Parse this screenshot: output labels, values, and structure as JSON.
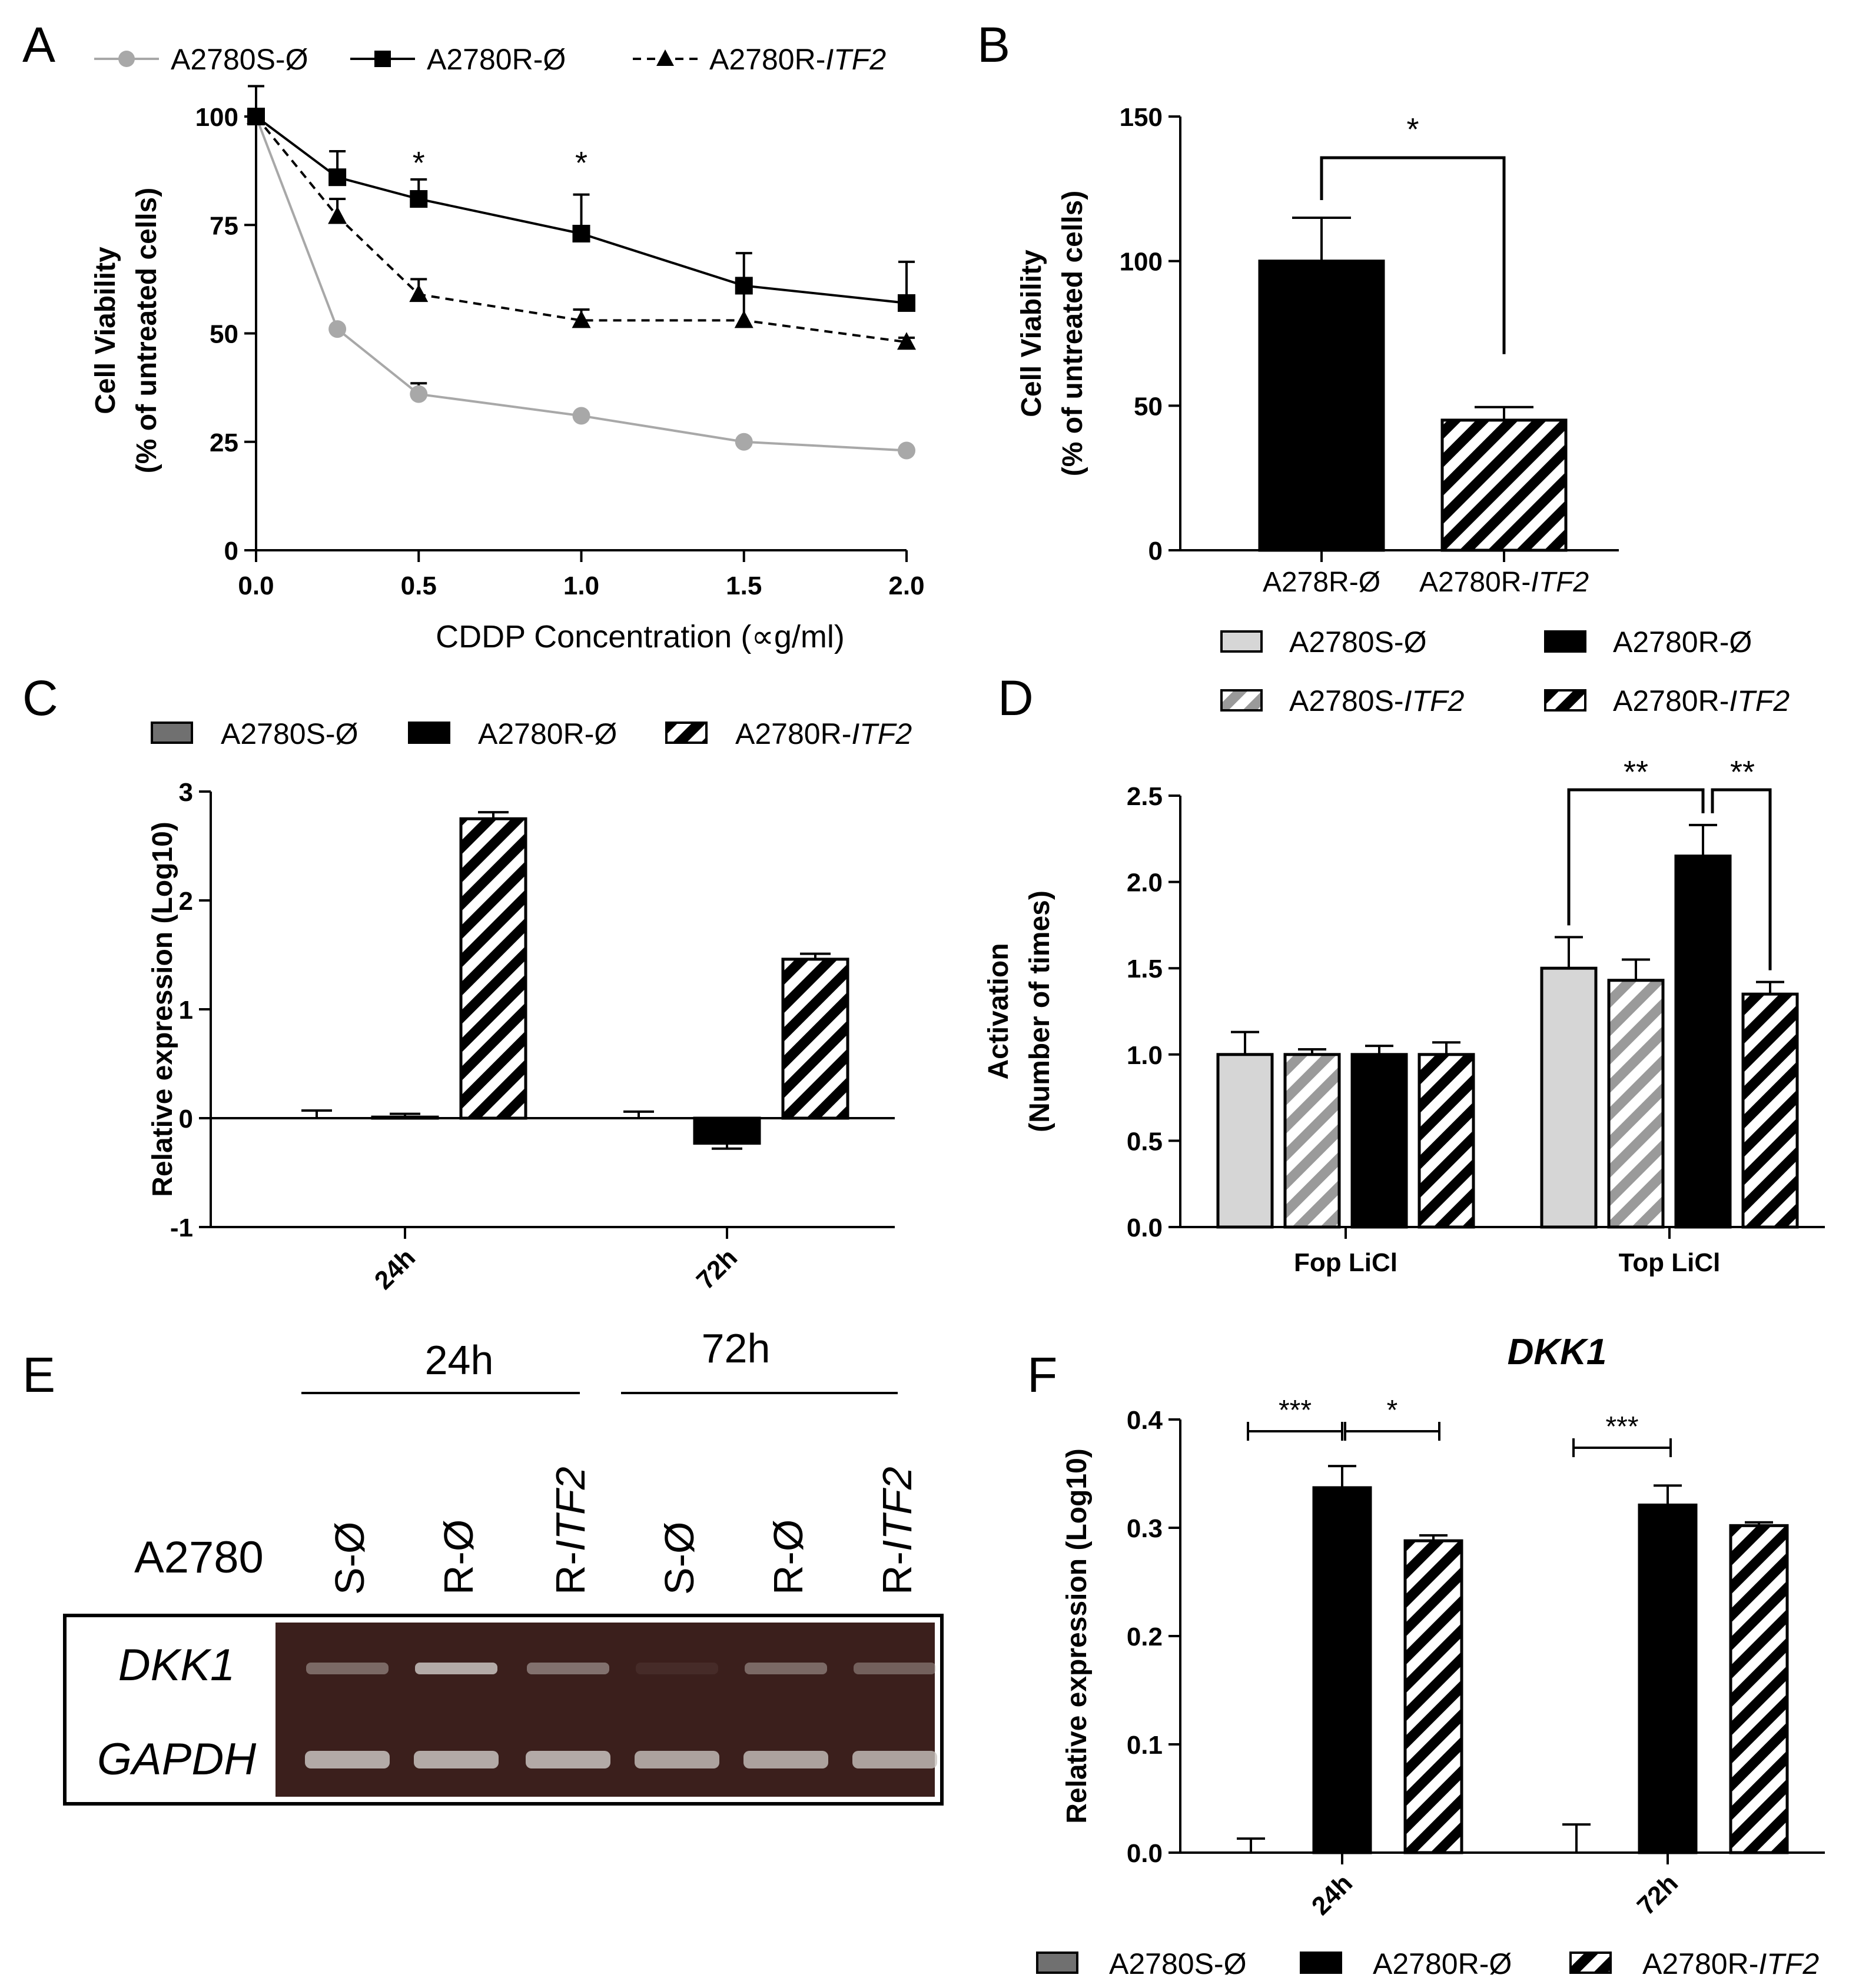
{
  "figure": {
    "panel_labels": [
      "A",
      "B",
      "C",
      "D",
      "E",
      "F"
    ]
  },
  "colors": {
    "black": "#000000",
    "s_line": "#a8a8a8",
    "s_bar_light": "#d6d6d6",
    "s_bar_dark": "#707070",
    "hatch_gray": "#9a9a9a",
    "gel_bg": "#3b1f1c",
    "gel_band": "#c9c3bf"
  },
  "chart_data": [
    {
      "panel": "A",
      "type": "line",
      "xlabel": "CDDP Concentration (∝g/ml)",
      "ylabel_lines": [
        "Cell Viability",
        "(% of untreated cells)"
      ],
      "xlim": [
        0,
        2.0
      ],
      "ylim": [
        0,
        100
      ],
      "xticks": [
        0.0,
        0.5,
        1.0,
        1.5,
        2.0
      ],
      "xtick_labels": [
        "0.0",
        "0.5",
        "1.0",
        "1.5",
        "2.0"
      ],
      "yticks": [
        0,
        25,
        50,
        75,
        100
      ],
      "ytick_labels": [
        "0",
        "25",
        "50",
        "75",
        "100"
      ],
      "x": [
        0,
        0.25,
        0.5,
        1.0,
        1.5,
        2.0
      ],
      "series": [
        {
          "name": "A2780S-Ø",
          "name_parts": [
            "A2780S-Ø",
            ""
          ],
          "style": "solid",
          "marker": "circle",
          "color": "#a8a8a8",
          "values": [
            100,
            51,
            36,
            31,
            25,
            23
          ],
          "errors": [
            7,
            0,
            2.5,
            0,
            0,
            0
          ]
        },
        {
          "name": "A2780R-Ø",
          "name_parts": [
            "A2780R-Ø",
            ""
          ],
          "style": "solid",
          "marker": "square",
          "color": "#000000",
          "values": [
            100,
            86,
            81,
            73,
            61,
            57
          ],
          "errors": [
            0,
            6,
            4.5,
            9,
            7.5,
            9.5
          ]
        },
        {
          "name": "A2780R-ITF2",
          "name_parts": [
            "A2780R-",
            "ITF2"
          ],
          "style": "dashed",
          "marker": "triangle",
          "color": "#000000",
          "values": [
            100,
            77,
            59,
            53,
            53,
            48
          ],
          "errors": [
            0,
            4,
            3.5,
            2.5,
            6.5,
            1
          ]
        }
      ],
      "annotations": [
        {
          "x": 0.5,
          "text": "*"
        },
        {
          "x": 1.0,
          "text": "*"
        }
      ]
    },
    {
      "panel": "B",
      "type": "bar",
      "ylabel_lines": [
        "Cell Viability",
        "(% of untreated cells)"
      ],
      "ylim": [
        0,
        150
      ],
      "yticks": [
        0,
        50,
        100,
        150
      ],
      "ytick_labels": [
        "0",
        "50",
        "100",
        "150"
      ],
      "categories": [
        {
          "label_parts": [
            "A278R-Ø",
            ""
          ],
          "value": 100,
          "error": 15,
          "fill": "black"
        },
        {
          "label_parts": [
            "A2780R-",
            "ITF2"
          ],
          "value": 45,
          "error": 4.5,
          "fill": "hatch"
        }
      ],
      "significance": {
        "text": "*"
      }
    },
    {
      "panel": "C",
      "type": "bar",
      "ylabel": "Relative expression (Log10)",
      "ylim": [
        -1,
        3
      ],
      "yticks": [
        -1,
        0,
        1,
        2,
        3
      ],
      "ytick_labels": [
        "-1",
        "0",
        "1",
        "2",
        "3"
      ],
      "categories": [
        "24h",
        "72h"
      ],
      "series": [
        {
          "name_parts": [
            "A2780S-Ø",
            ""
          ],
          "fill": "darkgray",
          "values": [
            0.0,
            0.0
          ],
          "errors": [
            0.07,
            0.06
          ]
        },
        {
          "name_parts": [
            "A2780R-Ø",
            ""
          ],
          "fill": "black",
          "values": [
            0.01,
            -0.23
          ],
          "errors": [
            0.03,
            0.05
          ]
        },
        {
          "name_parts": [
            "A2780R-",
            "ITF2"
          ],
          "fill": "hatch",
          "values": [
            2.75,
            1.46
          ],
          "errors": [
            0.06,
            0.05
          ]
        }
      ]
    },
    {
      "panel": "D",
      "type": "bar",
      "ylabel_lines": [
        "Activation",
        "(Number of times)"
      ],
      "ylim": [
        0,
        2.5
      ],
      "yticks": [
        0,
        0.5,
        1.0,
        1.5,
        2.0,
        2.5
      ],
      "ytick_labels": [
        "0.0",
        "0.5",
        "1.0",
        "1.5",
        "2.0",
        "2.5"
      ],
      "categories": [
        "Fop LiCl",
        "Top LiCl"
      ],
      "series": [
        {
          "name_parts": [
            "A2780S-Ø",
            ""
          ],
          "fill": "lightgray",
          "values": [
            1.0,
            1.5
          ],
          "errors": [
            0.13,
            0.18
          ]
        },
        {
          "name_parts": [
            "A2780S-",
            "ITF2"
          ],
          "fill": "hatch-gray",
          "values": [
            1.0,
            1.43
          ],
          "errors": [
            0.03,
            0.12
          ]
        },
        {
          "name_parts": [
            "A2780R-Ø",
            ""
          ],
          "fill": "black",
          "values": [
            1.0,
            2.15
          ],
          "errors": [
            0.05,
            0.18
          ]
        },
        {
          "name_parts": [
            "A2780R-",
            "ITF2"
          ],
          "fill": "hatch",
          "values": [
            1.0,
            1.35
          ],
          "errors": [
            0.07,
            0.07
          ]
        }
      ],
      "significance": [
        {
          "text": "**"
        },
        {
          "text": "**"
        }
      ]
    },
    {
      "panel": "F",
      "type": "bar",
      "title": "DKK1",
      "ylabel": "Relative expression (Log10)",
      "ylim": [
        0,
        0.4
      ],
      "yticks": [
        0,
        0.1,
        0.2,
        0.3,
        0.4
      ],
      "ytick_labels": [
        "0.0",
        "0.1",
        "0.2",
        "0.3",
        "0.4"
      ],
      "categories": [
        "24h",
        "72h"
      ],
      "series": [
        {
          "name_parts": [
            "A2780S-Ø",
            ""
          ],
          "fill": "darkgray",
          "values": [
            0.0,
            0.0
          ],
          "errors": [
            0.013,
            0.026
          ]
        },
        {
          "name_parts": [
            "A2780R-Ø",
            ""
          ],
          "fill": "black",
          "values": [
            0.337,
            0.321
          ],
          "errors": [
            0.02,
            0.018
          ]
        },
        {
          "name_parts": [
            "A2780R-",
            "ITF2"
          ],
          "fill": "hatch",
          "values": [
            0.288,
            0.302
          ],
          "errors": [
            0.005,
            0.003
          ]
        }
      ],
      "significance": [
        {
          "text": "***"
        },
        {
          "text": "*"
        },
        {
          "text": "***"
        }
      ]
    }
  ],
  "gel": {
    "panel": "E",
    "row_label": "A2780",
    "time_groups": [
      "24h",
      "72h"
    ],
    "lanes": [
      {
        "parts": [
          "S-Ø",
          ""
        ]
      },
      {
        "parts": [
          "R-Ø",
          ""
        ]
      },
      {
        "parts": [
          "R-",
          "ITF2"
        ]
      },
      {
        "parts": [
          "S-Ø",
          ""
        ]
      },
      {
        "parts": [
          "R-Ø",
          ""
        ]
      },
      {
        "parts": [
          "R-",
          "ITF2"
        ]
      }
    ],
    "genes": [
      "DKK1",
      "GAPDH"
    ],
    "dkk1_intensity": [
      0.45,
      0.85,
      0.5,
      0.08,
      0.45,
      0.4
    ],
    "gapdh_intensity": [
      0.85,
      0.85,
      0.85,
      0.8,
      0.8,
      0.8
    ]
  }
}
